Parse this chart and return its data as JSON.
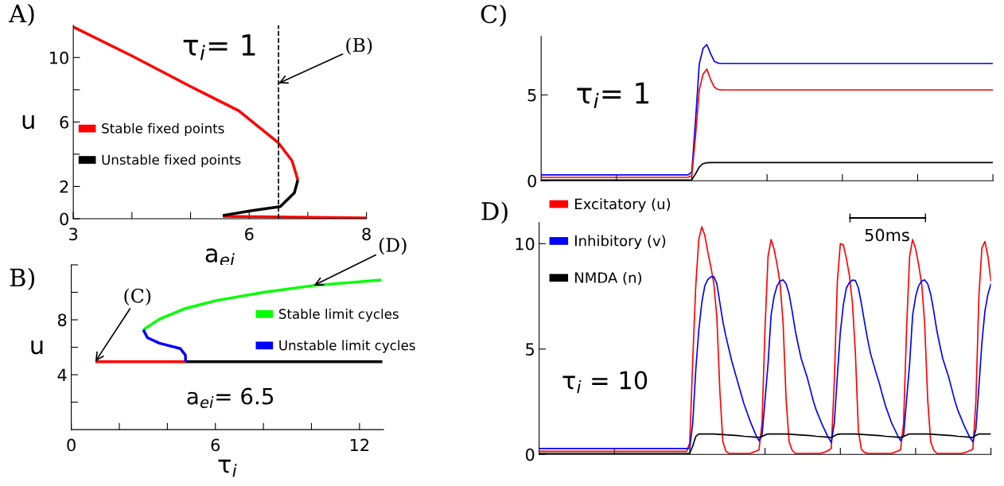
{
  "chart_data": [
    {
      "type": "line",
      "title": "A)",
      "xlabel": "a$_{ei}$",
      "ylabel": "u",
      "xlim": [
        3,
        8
      ],
      "ylim": [
        0,
        12
      ],
      "xticks": [
        3,
        {
          "value": 4,
          "label": null
        },
        {
          "value": 5,
          "label": null
        },
        6,
        {
          "value": 7,
          "label": null
        },
        8
      ],
      "yticks": [
        0,
        2,
        {
          "value": 4,
          "label": null
        },
        6,
        {
          "value": 8,
          "label": null
        },
        10
      ],
      "series": [
        {
          "name": "Stable fixed points",
          "color": "#ff0000",
          "x": [
            3,
            4,
            5,
            5.82,
            6.5,
            6.73,
            6.83
          ],
          "values": [
            11.9,
            10.1,
            8.2,
            6.7,
            4.7,
            3.6,
            2.4
          ]
        },
        {
          "color": "#ff0000",
          "x": [
            5.55,
            8
          ],
          "values": [
            0.15,
            0.05
          ]
        },
        {
          "name": "Unstable fixed points",
          "color": "#000000",
          "x": [
            6.83,
            6.77,
            6.53,
            6.05,
            5.55
          ],
          "values": [
            2.4,
            1.6,
            0.75,
            0.5,
            0.2
          ]
        }
      ],
      "ref_lines": [
        {
          "axis": "x",
          "value": 6.5,
          "color": "#000000",
          "line_style": "dashed"
        }
      ],
      "annotations": [
        "τ$_{i}$= 1",
        {
          "text": "(B)",
          "x": 6.5,
          "y": 8.4
        }
      ],
      "legend": "left"
    },
    {
      "type": "line",
      "title": "C)",
      "ylim": [
        0,
        8.4
      ],
      "categories": [
        null,
        null,
        null,
        null,
        null,
        null,
        null,
        null,
        null,
        null,
        null,
        null,
        null,
        null,
        null,
        null,
        null,
        null,
        null,
        null,
        null,
        null,
        null,
        null,
        null,
        null,
        null,
        null,
        null,
        null,
        null,
        null,
        null,
        null,
        null,
        null,
        null,
        null,
        null,
        null,
        null,
        null,
        null,
        null,
        null,
        null,
        null,
        null,
        null,
        null,
        null,
        null,
        null,
        null,
        null,
        null,
        null,
        null,
        null,
        null,
        null,
        null,
        null,
        null,
        null,
        null,
        null,
        null,
        null,
        null,
        null,
        null,
        null,
        null,
        null,
        null,
        null,
        null,
        null,
        null,
        null,
        null,
        null,
        null,
        null,
        null,
        null,
        null,
        null,
        null,
        null,
        null,
        null,
        null,
        null,
        null,
        null,
        null,
        null,
        null,
        null,
        null,
        null,
        null,
        null,
        null,
        null,
        null,
        null,
        null,
        null,
        null,
        null,
        null,
        null,
        null,
        null,
        null,
        null,
        null,
        null
      ],
      "yticks": [
        0,
        5
      ],
      "tick_labels": "y",
      "series": [
        {
          "color": "#0000ff",
          "values": [
            0.34,
            0.34,
            0.34,
            0.34,
            0.34,
            0.34,
            0.34,
            0.34,
            0.34,
            0.34,
            0.34,
            0.34,
            0.34,
            0.34,
            0.34,
            0.34,
            0.34,
            0.34,
            0.34,
            0.34,
            0.34,
            0.34,
            0.34,
            0.34,
            0.34,
            0.34,
            0.34,
            0.34,
            0.34,
            0.34,
            0.34,
            0.34,
            0.34,
            0.34,
            0.34,
            0.34,
            0.34,
            0.34,
            0.34,
            0.34,
            0.5,
            3.5,
            6.8,
            7.7,
            7.93,
            7.4,
            6.95,
            6.85,
            6.83,
            6.83,
            6.83,
            6.83,
            6.83,
            6.83,
            6.83,
            6.83,
            6.83,
            6.83,
            6.83,
            6.83,
            6.83,
            6.83,
            6.83,
            6.83,
            6.83,
            6.83,
            6.83,
            6.83,
            6.83,
            6.83,
            6.83,
            6.83,
            6.83,
            6.83,
            6.83,
            6.83,
            6.83,
            6.83,
            6.83,
            6.83,
            6.83,
            6.83,
            6.83,
            6.83,
            6.83,
            6.83,
            6.83,
            6.83,
            6.83,
            6.83,
            6.83,
            6.83,
            6.83,
            6.83,
            6.83,
            6.83,
            6.83,
            6.83,
            6.83,
            6.83,
            6.83,
            6.83,
            6.83,
            6.83,
            6.83,
            6.83,
            6.83,
            6.83,
            6.83,
            6.83,
            6.83,
            6.83,
            6.83,
            6.83,
            6.83,
            6.83,
            6.83,
            6.83,
            6.83,
            6.83,
            6.83
          ]
        },
        {
          "color": "#ff0000",
          "values": [
            0.2,
            0.2,
            0.2,
            0.2,
            0.2,
            0.2,
            0.2,
            0.2,
            0.2,
            0.2,
            0.2,
            0.2,
            0.2,
            0.2,
            0.2,
            0.2,
            0.2,
            0.2,
            0.2,
            0.2,
            0.2,
            0.2,
            0.2,
            0.2,
            0.2,
            0.2,
            0.2,
            0.2,
            0.2,
            0.2,
            0.2,
            0.2,
            0.2,
            0.2,
            0.2,
            0.2,
            0.2,
            0.2,
            0.2,
            0.2,
            0.3,
            2.6,
            5.3,
            6.2,
            6.5,
            5.9,
            5.45,
            5.31,
            5.29,
            5.29,
            5.29,
            5.29,
            5.29,
            5.29,
            5.29,
            5.29,
            5.29,
            5.29,
            5.29,
            5.29,
            5.29,
            5.29,
            5.29,
            5.29,
            5.29,
            5.29,
            5.29,
            5.29,
            5.29,
            5.29,
            5.29,
            5.29,
            5.29,
            5.29,
            5.29,
            5.29,
            5.29,
            5.29,
            5.29,
            5.29,
            5.29,
            5.29,
            5.29,
            5.29,
            5.29,
            5.29,
            5.29,
            5.29,
            5.29,
            5.29,
            5.29,
            5.29,
            5.29,
            5.29,
            5.29,
            5.29,
            5.29,
            5.29,
            5.29,
            5.29,
            5.29,
            5.29,
            5.29,
            5.29,
            5.29,
            5.29,
            5.29,
            5.29,
            5.29,
            5.29,
            5.29,
            5.29,
            5.29,
            5.29,
            5.29,
            5.29,
            5.29,
            5.29,
            5.29,
            5.29,
            5.29
          ]
        },
        {
          "color": "#000000",
          "values": [
            0.05,
            0.05,
            0.05,
            0.05,
            0.05,
            0.05,
            0.05,
            0.05,
            0.05,
            0.05,
            0.05,
            0.05,
            0.05,
            0.05,
            0.05,
            0.05,
            0.05,
            0.05,
            0.05,
            0.05,
            0.05,
            0.05,
            0.05,
            0.05,
            0.05,
            0.05,
            0.05,
            0.05,
            0.05,
            0.05,
            0.05,
            0.05,
            0.05,
            0.05,
            0.05,
            0.05,
            0.05,
            0.05,
            0.05,
            0.05,
            0.06,
            0.4,
            0.8,
            1.0,
            1.05,
            1.06,
            1.06,
            1.06,
            1.06,
            1.06,
            1.06,
            1.06,
            1.06,
            1.06,
            1.06,
            1.06,
            1.06,
            1.06,
            1.06,
            1.06,
            1.06,
            1.06,
            1.06,
            1.06,
            1.06,
            1.06,
            1.06,
            1.06,
            1.06,
            1.06,
            1.06,
            1.06,
            1.06,
            1.06,
            1.06,
            1.06,
            1.06,
            1.06,
            1.06,
            1.06,
            1.06,
            1.06,
            1.06,
            1.06,
            1.06,
            1.06,
            1.06,
            1.06,
            1.06,
            1.06,
            1.06,
            1.06,
            1.06,
            1.06,
            1.06,
            1.06,
            1.06,
            1.06,
            1.06,
            1.06,
            1.06,
            1.06,
            1.06,
            1.06,
            1.06,
            1.06,
            1.06,
            1.06,
            1.06,
            1.06,
            1.06,
            1.06,
            1.06,
            1.06,
            1.06,
            1.06,
            1.06,
            1.06,
            1.06,
            1.06,
            1.06
          ]
        }
      ],
      "annotations": [
        "τ$_{i}$= 1"
      ]
    },
    {
      "type": "line",
      "title": "B)",
      "xlabel": "τ$_{i}$",
      "ylabel": "u",
      "xlim": [
        0,
        13
      ],
      "ylim": [
        0,
        12
      ],
      "xticks": [
        0,
        {
          "value": 2,
          "label": null
        },
        {
          "value": 4,
          "label": null
        },
        6,
        {
          "value": 8,
          "label": null
        },
        {
          "value": 10,
          "label": null
        },
        12
      ],
      "yticks": [
        {
          "value": 2,
          "label": null
        },
        4,
        {
          "value": 6,
          "label": null
        },
        8,
        {
          "value": 10,
          "label": null
        },
        {
          "value": 12,
          "label": null
        }
      ],
      "series": [
        {
          "color": "#ff0000",
          "x": [
            1.0,
            4.76
          ],
          "values": [
            4.95,
            4.95
          ]
        },
        {
          "color": "#000000",
          "x": [
            4.76,
            12.95
          ],
          "values": [
            4.95,
            4.95
          ]
        },
        {
          "name": "Stable limit cycles",
          "color": "#00ff00",
          "x": [
            3.0,
            3.66,
            4.76,
            6.03,
            8.0,
            10.1,
            12.9
          ],
          "values": [
            7.27,
            8.04,
            8.83,
            9.4,
            10.0,
            10.5,
            10.9
          ]
        },
        {
          "name": "Unstable limit cycles",
          "color": "#0000ff",
          "x": [
            4.76,
            4.75,
            4.54,
            3.66,
            3.17,
            3.0
          ],
          "values": [
            4.95,
            5.43,
            5.9,
            6.3,
            6.7,
            7.27
          ]
        }
      ],
      "annotations": [
        {
          "text": "(C)",
          "x": 1.0,
          "y": 4.95
        },
        {
          "text": "(D)",
          "x": 10.1,
          "y": 10.5
        },
        "a$_{ei}$= 6.5"
      ],
      "legend": "right"
    },
    {
      "type": "line",
      "title": "D)",
      "ylim": [
        0,
        11
      ],
      "categories": [
        null,
        null,
        null,
        null,
        null,
        null,
        null,
        null,
        null,
        null,
        null,
        null,
        null,
        null,
        null,
        null,
        null,
        null,
        null,
        null,
        null,
        null,
        null,
        null,
        null,
        null,
        null,
        null,
        null,
        null,
        null,
        null,
        null,
        null,
        null,
        null,
        null,
        null,
        null,
        null,
        null,
        null,
        null,
        null,
        null,
        null,
        null,
        null,
        null,
        null,
        null,
        null,
        null,
        null,
        null,
        null,
        null,
        null,
        null,
        null,
        null,
        null,
        null,
        null,
        null,
        null,
        null,
        null,
        null,
        null,
        null,
        null,
        null,
        null,
        null,
        null,
        null,
        null,
        null,
        null,
        null,
        null,
        null,
        null,
        null,
        null,
        null,
        null,
        null,
        null,
        null,
        null,
        null,
        null,
        null,
        null,
        null,
        null,
        null,
        null,
        null,
        null,
        null,
        null,
        null,
        null,
        null,
        null,
        null,
        null,
        null,
        null,
        null,
        null,
        null,
        null,
        null,
        null,
        null,
        null,
        null,
        null,
        null,
        null,
        null,
        null,
        null,
        null,
        null,
        null,
        null,
        null,
        null,
        null,
        null,
        null,
        null,
        null,
        null,
        null,
        null,
        null,
        null,
        null,
        null,
        null,
        null,
        null,
        null,
        null,
        null
      ],
      "yticks": [
        0,
        5,
        10
      ],
      "tick_labels": "y",
      "series": [
        {
          "name": "Excitatory (u)",
          "color": "#ff0000",
          "values": [
            0.15,
            0.15,
            0.15,
            0.15,
            0.15,
            0.15,
            0.15,
            0.15,
            0.15,
            0.15,
            0.15,
            0.15,
            0.15,
            0.15,
            0.15,
            0.15,
            0.15,
            0.15,
            0.15,
            0.15,
            0.15,
            0.15,
            0.15,
            0.15,
            0.15,
            0.15,
            0.15,
            0.15,
            0.15,
            0.15,
            0.15,
            0.15,
            0.15,
            0.15,
            0.15,
            0.15,
            0.15,
            0.15,
            0.15,
            0.15,
            0.15,
            0.15,
            0.15,
            0.15,
            0.15,
            0.15,
            0.15,
            0.15,
            0.15,
            0.15,
            0.55,
            4.5,
            8.0,
            10.2,
            10.8,
            10.4,
            9.6,
            8.9,
            8.1,
            6.5,
            3.0,
            0.6,
            0.15,
            0.05,
            0.05,
            0.05,
            0.05,
            0.05,
            0.05,
            0.05,
            0.05,
            0.1,
            0.15,
            0.22,
            1.5,
            6.0,
            9.4,
            10.2,
            9.75,
            9.0,
            8.1,
            6.2,
            2.6,
            0.6,
            0.2,
            0.05,
            0.05,
            0.05,
            0.05,
            0.05,
            0.05,
            0.05,
            0.05,
            0.05,
            0.07,
            0.12,
            0.18,
            0.29,
            3.5,
            8.2,
            10.0,
            9.95,
            9.3,
            8.5,
            7.2,
            4.8,
            1.1,
            0.23,
            0.1,
            0.05,
            0.05,
            0.05,
            0.05,
            0.05,
            0.05,
            0.05,
            0.05,
            0.05,
            0.1,
            0.15,
            0.22,
            1.5,
            6.0,
            9.4,
            10.2,
            9.75,
            9.0,
            8.1,
            6.2,
            2.6,
            0.6,
            0.2,
            0.05,
            0.05,
            0.05,
            0.05,
            0.05,
            0.05,
            0.05,
            0.05,
            0.05,
            0.07,
            0.12,
            0.18,
            0.25,
            2.5,
            7.5,
            9.8,
            10.1,
            9.4,
            8.2
          ]
        },
        {
          "name": "Inhibitory (v)",
          "color": "#0000ff",
          "values": [
            0.28,
            0.28,
            0.28,
            0.28,
            0.28,
            0.28,
            0.28,
            0.28,
            0.28,
            0.28,
            0.28,
            0.28,
            0.28,
            0.28,
            0.28,
            0.28,
            0.28,
            0.28,
            0.28,
            0.28,
            0.28,
            0.28,
            0.28,
            0.28,
            0.28,
            0.28,
            0.28,
            0.28,
            0.28,
            0.28,
            0.28,
            0.28,
            0.28,
            0.28,
            0.28,
            0.28,
            0.28,
            0.28,
            0.28,
            0.28,
            0.28,
            0.28,
            0.28,
            0.28,
            0.28,
            0.28,
            0.28,
            0.28,
            0.28,
            0.28,
            0.3,
            1.5,
            4.0,
            5.9,
            7.2,
            8.0,
            8.3,
            8.42,
            8.43,
            8.1,
            7.2,
            6.3,
            5.6,
            5.0,
            4.4,
            3.9,
            3.4,
            2.9,
            2.4,
            2.0,
            1.6,
            1.25,
            0.9,
            0.65,
            0.9,
            2.6,
            4.3,
            6.6,
            7.5,
            8.0,
            8.23,
            8.28,
            8.1,
            7.6,
            6.8,
            5.9,
            5.2,
            4.55,
            4.1,
            3.65,
            3.1,
            2.55,
            2.1,
            1.75,
            1.4,
            1.1,
            0.8,
            0.56,
            1.5,
            3.7,
            5.8,
            7.1,
            7.9,
            8.15,
            8.27,
            8.25,
            7.9,
            7.15,
            6.3,
            5.5,
            4.8,
            4.3,
            3.8,
            3.35,
            2.8,
            2.3,
            1.9,
            1.5,
            1.2,
            0.9,
            0.65,
            0.9,
            2.6,
            4.3,
            6.6,
            7.5,
            8.0,
            8.23,
            8.28,
            8.1,
            7.6,
            6.8,
            5.9,
            5.2,
            4.55,
            4.1,
            3.65,
            3.1,
            2.55,
            2.1,
            1.75,
            1.4,
            1.1,
            0.8,
            0.6,
            1.2,
            3.2,
            5.3,
            6.8,
            7.6,
            8.1
          ]
        },
        {
          "name": "NMDA (n)",
          "color": "#000000",
          "values": [
            0.05,
            0.05,
            0.05,
            0.05,
            0.05,
            0.05,
            0.05,
            0.05,
            0.05,
            0.05,
            0.05,
            0.05,
            0.05,
            0.05,
            0.05,
            0.05,
            0.05,
            0.05,
            0.05,
            0.05,
            0.05,
            0.05,
            0.05,
            0.05,
            0.05,
            0.05,
            0.05,
            0.05,
            0.05,
            0.05,
            0.05,
            0.05,
            0.05,
            0.05,
            0.05,
            0.05,
            0.05,
            0.05,
            0.05,
            0.05,
            0.05,
            0.05,
            0.05,
            0.05,
            0.05,
            0.05,
            0.05,
            0.05,
            0.05,
            0.05,
            0.05,
            0.4,
            0.85,
            0.97,
            0.97,
            0.97,
            0.97,
            0.97,
            0.97,
            0.96,
            0.95,
            0.94,
            0.93,
            0.92,
            0.91,
            0.9,
            0.89,
            0.88,
            0.86,
            0.85,
            0.84,
            0.83,
            0.82,
            0.81,
            0.85,
            0.92,
            0.97,
            0.97,
            0.97,
            0.97,
            0.97,
            0.97,
            0.97,
            0.96,
            0.95,
            0.94,
            0.93,
            0.92,
            0.91,
            0.9,
            0.89,
            0.88,
            0.86,
            0.85,
            0.84,
            0.83,
            0.82,
            0.8,
            0.88,
            0.95,
            0.97,
            0.97,
            0.97,
            0.97,
            0.97,
            0.97,
            0.96,
            0.95,
            0.94,
            0.93,
            0.92,
            0.91,
            0.9,
            0.89,
            0.88,
            0.86,
            0.85,
            0.84,
            0.83,
            0.82,
            0.81,
            0.85,
            0.92,
            0.97,
            0.97,
            0.97,
            0.97,
            0.97,
            0.97,
            0.97,
            0.96,
            0.95,
            0.94,
            0.93,
            0.92,
            0.91,
            0.9,
            0.89,
            0.88,
            0.86,
            0.85,
            0.84,
            0.83,
            0.82,
            0.8,
            0.9,
            0.97,
            0.97,
            0.97,
            0.97,
            0.97
          ]
        }
      ],
      "annotations": [
        "50ms",
        "τ$_{i}$ = 10"
      ],
      "legend": "top left"
    }
  ]
}
